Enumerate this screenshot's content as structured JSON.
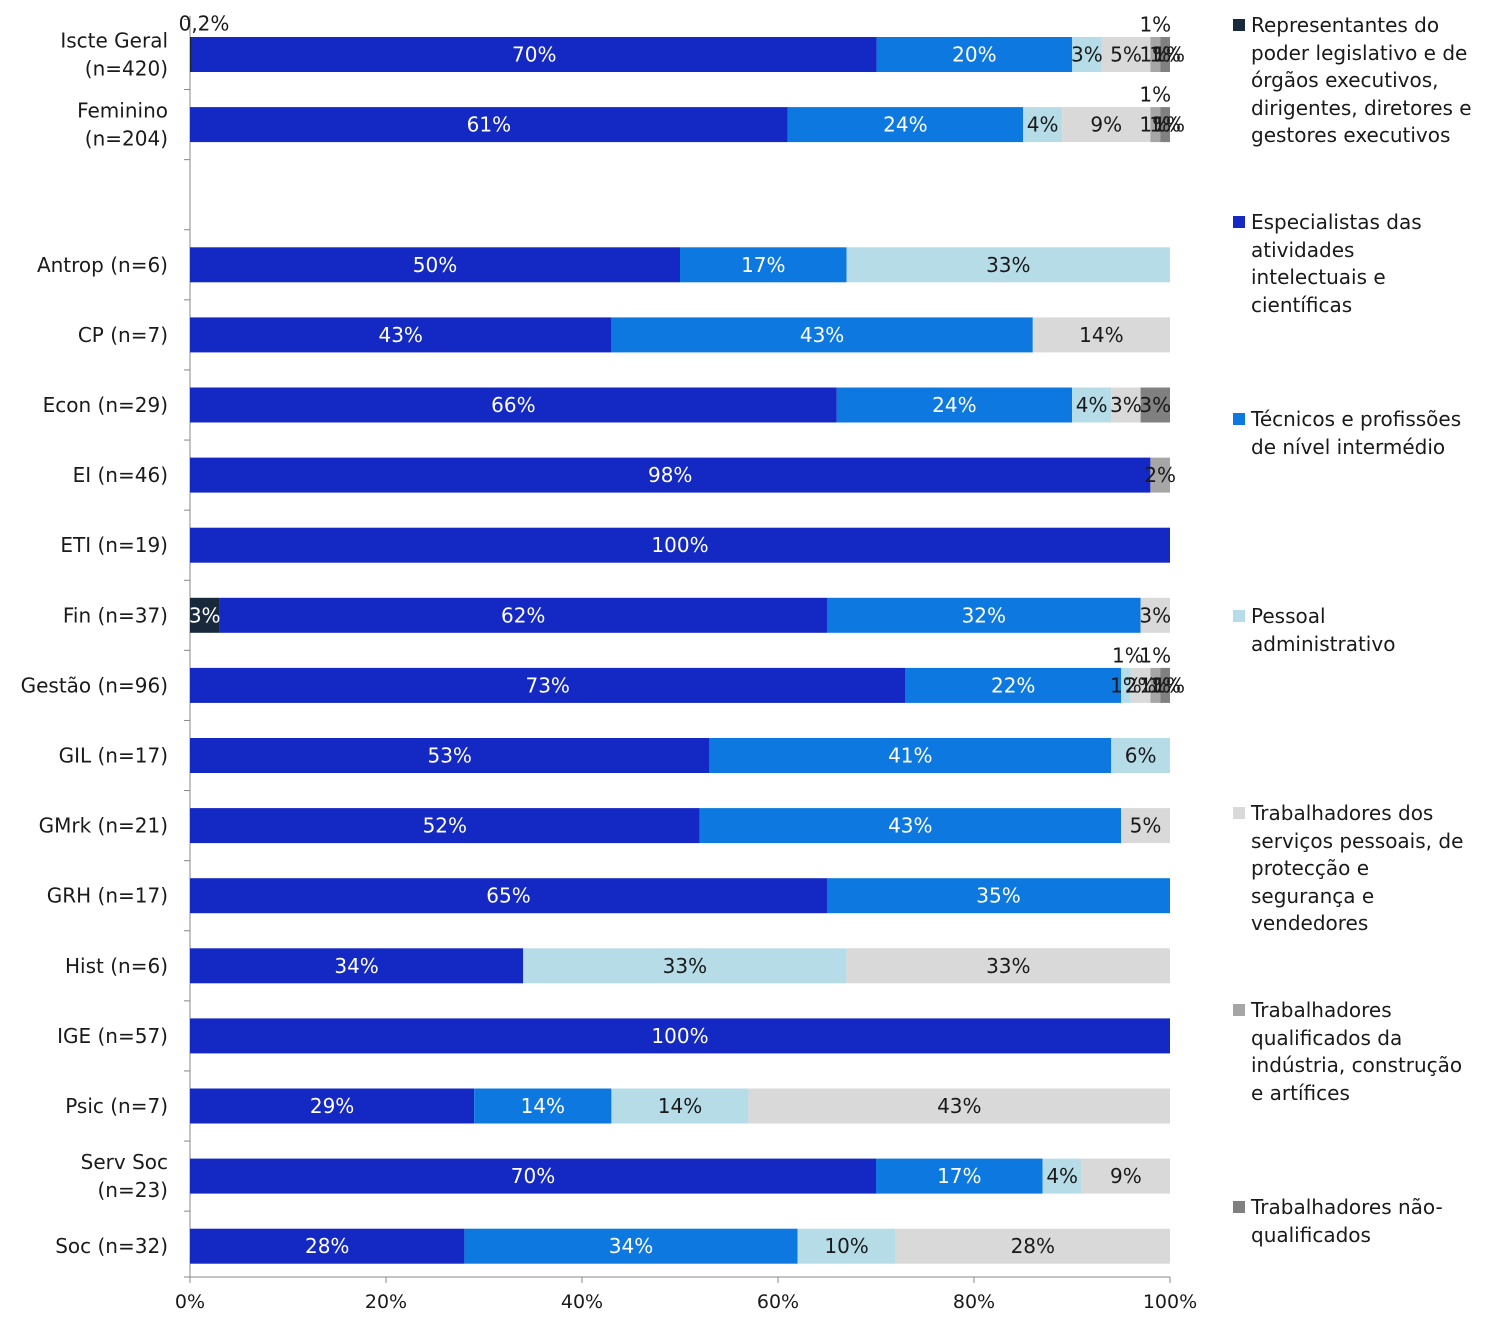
{
  "chart_data": {
    "type": "bar",
    "orientation": "horizontal",
    "stacked": true,
    "normalized": true,
    "title": "",
    "xlabel": "",
    "ylabel": "",
    "xlim": [
      0,
      100
    ],
    "x_ticks": [
      "0%",
      "20%",
      "40%",
      "60%",
      "80%",
      "100%"
    ],
    "grid": false,
    "legend_position": "right",
    "categories": [
      [
        "Iscte Geral",
        "(n=420)"
      ],
      [
        "Feminino",
        "(n=204)"
      ],
      [],
      [
        "Antrop (n=6)"
      ],
      [
        "CP (n=7)"
      ],
      [
        "Econ (n=29)"
      ],
      [
        "EI (n=46)"
      ],
      [
        "ETI (n=19)"
      ],
      [
        "Fin (n=37)"
      ],
      [
        "Gestão (n=96)"
      ],
      [
        "GIL (n=17)"
      ],
      [
        "GMrk (n=21)"
      ],
      [
        "GRH (n=17)"
      ],
      [
        "Hist (n=6)"
      ],
      [
        "IGE (n=57)"
      ],
      [
        "Psic (n=7)"
      ],
      [
        "Serv Soc",
        "(n=23)"
      ],
      [
        "Soc (n=32)"
      ]
    ],
    "series": [
      {
        "name": "Representantes do poder legislativo e de órgãos executivos, dirigentes, diretores e gestores executivos",
        "color": "#17293a",
        "values": [
          0.2,
          0,
          null,
          0,
          0,
          0,
          0,
          0,
          3,
          0,
          0,
          0,
          0,
          0,
          0,
          0,
          0,
          0
        ],
        "labels": [
          "0,2%",
          "",
          "",
          "",
          "",
          "",
          "",
          "",
          "3%",
          "",
          "",
          "",
          "",
          "",
          "",
          "",
          "",
          ""
        ]
      },
      {
        "name": "Especialistas das atividades intelectuais e científicas",
        "color": "#1428c4",
        "values": [
          70,
          61,
          null,
          50,
          43,
          66,
          98,
          100,
          62,
          73,
          53,
          52,
          65,
          34,
          100,
          29,
          70,
          28
        ],
        "labels": [
          "70%",
          "61%",
          "",
          "50%",
          "43%",
          "66%",
          "98%",
          "100%",
          "62%",
          "73%",
          "53%",
          "52%",
          "65%",
          "34%",
          "100%",
          "29%",
          "70%",
          "28%"
        ]
      },
      {
        "name": "Técnicos e profissões de nível intermédio",
        "color": "#0d79e0",
        "values": [
          20,
          24,
          null,
          17,
          43,
          24,
          0,
          0,
          32,
          22,
          41,
          43,
          35,
          0,
          0,
          14,
          17,
          34
        ],
        "labels": [
          "20%",
          "24%",
          "",
          "17%",
          "43%",
          "24%",
          "",
          "",
          "32%",
          "22%",
          "41%",
          "43%",
          "35%",
          "",
          "",
          "14%",
          "17%",
          "34%"
        ]
      },
      {
        "name": "Pessoal administrativo",
        "color": "#b6dce8",
        "values": [
          3,
          4,
          null,
          33,
          0,
          4,
          0,
          0,
          0,
          1,
          6,
          0,
          0,
          33,
          0,
          14,
          4,
          10
        ],
        "labels": [
          "3%",
          "4%",
          "",
          "33%",
          "",
          "4%",
          "",
          "",
          "",
          "1%",
          "6%",
          "",
          "",
          "33%",
          "",
          "14%",
          "4%",
          "10%"
        ]
      },
      {
        "name": "Trabalhadores dos serviços pessoais, de protecção e segurança e vendedores",
        "color": "#d9d9d9",
        "values": [
          5,
          9,
          null,
          0,
          14,
          3,
          0,
          0,
          3,
          2,
          0,
          5,
          0,
          33,
          0,
          43,
          9,
          28
        ],
        "labels": [
          "5%",
          "9%",
          "",
          "",
          "14%",
          "3%",
          "",
          "",
          "3%",
          "2%",
          "",
          "5%",
          "",
          "33%",
          "",
          "43%",
          "9%",
          "28%"
        ]
      },
      {
        "name": "Trabalhadores qualificados da indústria, construção e artífices",
        "color": "#a6a6a6",
        "values": [
          1,
          1,
          null,
          0,
          0,
          0,
          2,
          0,
          0,
          1,
          0,
          0,
          0,
          0,
          0,
          0,
          0,
          0
        ],
        "labels": [
          "1%",
          "1%",
          "",
          "",
          "",
          "",
          "2%",
          "",
          "",
          "1%",
          "",
          "",
          "",
          "",
          "",
          "",
          "",
          ""
        ]
      },
      {
        "name": "Trabalhadores não-qualificados",
        "color": "#808080",
        "values": [
          1,
          1,
          null,
          0,
          0,
          3,
          0,
          0,
          0,
          1,
          0,
          0,
          0,
          0,
          0,
          0,
          0,
          0
        ],
        "labels": [
          "1%",
          "1%",
          "",
          "",
          "",
          "3%",
          "",
          "",
          "",
          "1%",
          "",
          "",
          "",
          "",
          "",
          "",
          "",
          ""
        ]
      }
    ],
    "legend_lines": [
      [
        "Representantes do",
        "poder legislativo e de",
        "órgãos executivos,",
        "dirigentes, diretores e",
        "gestores executivos"
      ],
      [
        "Especialistas das",
        "atividades",
        "intelectuais e",
        "científicas"
      ],
      [
        "Técnicos e profissões",
        "de nível intermédio"
      ],
      [
        "Pessoal",
        "administrativo"
      ],
      [
        "Trabalhadores dos",
        "serviços pessoais, de",
        "protecção e",
        "segurança e",
        "vendedores"
      ],
      [
        "Trabalhadores",
        "qualificados da",
        "indústria, construção",
        "e artífices"
      ],
      [
        "Trabalhadores não-",
        "qualificados"
      ]
    ]
  }
}
